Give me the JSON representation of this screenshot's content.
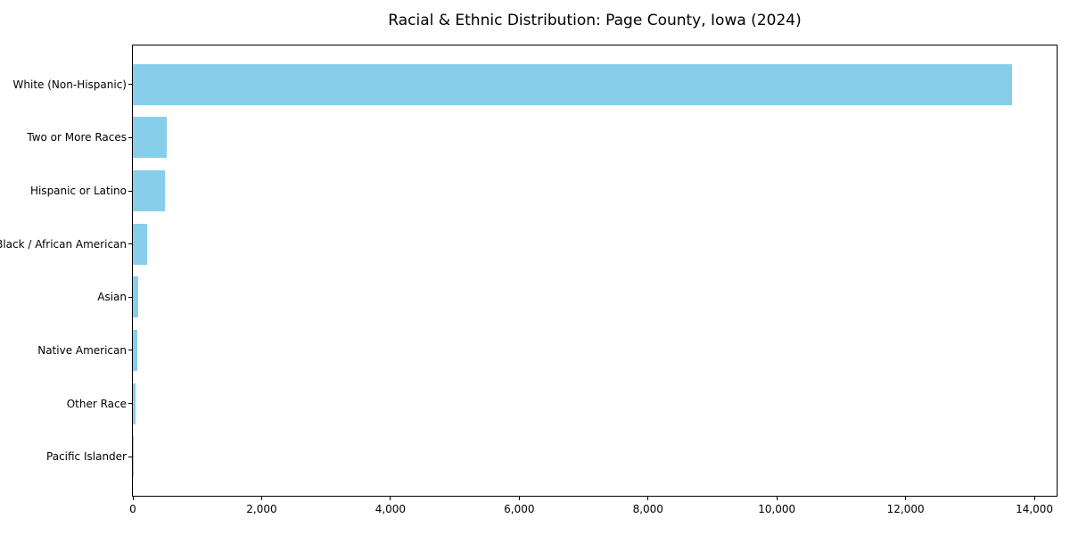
{
  "chart_data": {
    "type": "bar",
    "orientation": "horizontal",
    "title": "Racial & Ethnic Distribution: Page County, Iowa (2024)",
    "categories": [
      "White (Non-Hispanic)",
      "Two or More Races",
      "Hispanic or Latino",
      "Black / African American",
      "Asian",
      "Native American",
      "Other Race",
      "Pacific Islander"
    ],
    "values": [
      13650,
      520,
      505,
      225,
      90,
      65,
      38,
      5
    ],
    "bar_color": "#87CEEB",
    "frame_color": "#000000",
    "text_color": "#000000",
    "xlabel": "",
    "ylabel": "",
    "xlim": [
      0,
      14345
    ],
    "xticks": {
      "values": [
        0,
        2000,
        4000,
        6000,
        8000,
        10000,
        12000,
        14000
      ],
      "labels": [
        "0",
        "2,000",
        "4,000",
        "6,000",
        "8,000",
        "10,000",
        "12,000",
        "14,000"
      ]
    },
    "grid": false,
    "legend": false
  }
}
